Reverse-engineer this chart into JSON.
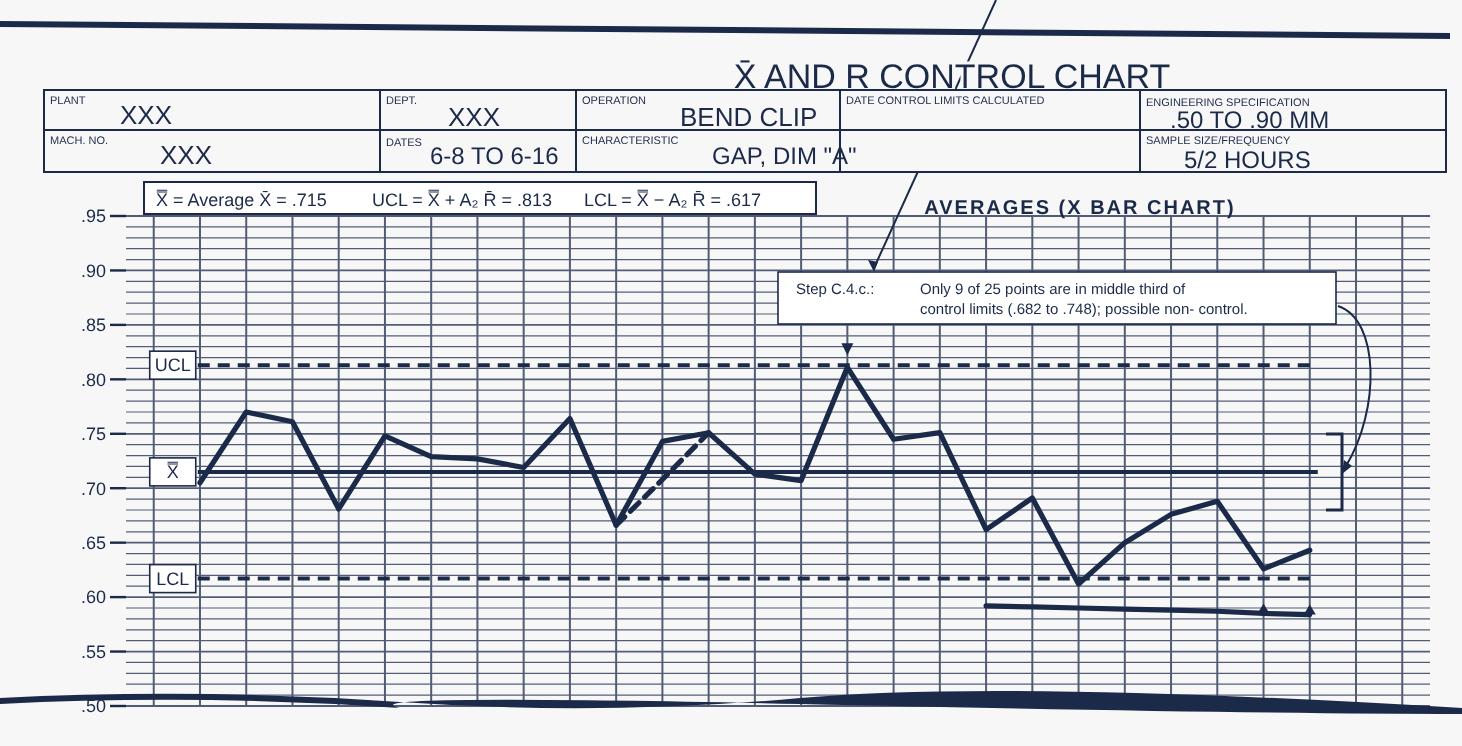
{
  "chart_data": {
    "type": "line",
    "title": "X̄ AND R CONTROL CHART",
    "subtitle": "AVERAGES (X BAR CHART)",
    "annotations": [
      "PLANT",
      "XXX",
      "DEPT.",
      "XXX",
      "OPERATION",
      "BEND CLIP",
      "DATE CONTROL LIMITS CALCULATED",
      "ENGINEERING SPECIFICATION",
      ".50 TO .90 MM",
      "MACH. NO.",
      "XXX",
      "DATES",
      "6-8 TO 6-16",
      "CHARACTERISTIC",
      "GAP, DIM \"A\"",
      "SAMPLE SIZE/FREQUENCY",
      "5/2 HOURS",
      "X̿ = Average X̄ = .715",
      "UCL = X̿ + A₂ R̄ = .813",
      "LCL = X̿ − A₂ R̄ = .617",
      "Step C.4.c.:",
      "Only 9 of 25 points are in middle third of",
      "control limits (.682 to .748); possible non- control."
    ],
    "categories": [
      null,
      null,
      null,
      null,
      null,
      null,
      null,
      null,
      null,
      null,
      null,
      null,
      null,
      null,
      null,
      null,
      null,
      null,
      null,
      null,
      null,
      null,
      null,
      null,
      null,
      null,
      null,
      null
    ],
    "series": [
      {
        "color": "#1c2a4a",
        "values": [
          null,
          0.705,
          0.77,
          0.761,
          0.681,
          0.748,
          0.729,
          0.727,
          0.719,
          0.764,
          0.666,
          0.743,
          0.751,
          0.713,
          0.707,
          0.811,
          0.745,
          0.751,
          0.662,
          0.691,
          0.612,
          0.65,
          0.676,
          0.688,
          0.626,
          0.643,
          null,
          null
        ]
      },
      {
        "color": "#1c2a4a",
        "values": [
          null,
          null,
          null,
          null,
          null,
          null,
          null,
          null,
          null,
          null,
          0.666,
          0.708,
          0.751,
          null,
          null,
          null,
          null,
          null,
          null,
          null,
          null,
          null,
          null,
          null,
          null,
          null,
          null,
          null
        ],
        "line_style": "dashed"
      },
      {
        "color": "#1c2a4a",
        "values": [
          null,
          null,
          null,
          null,
          null,
          null,
          null,
          null,
          null,
          null,
          null,
          null,
          null,
          null,
          null,
          null,
          null,
          null,
          0.592,
          0.591,
          0.59,
          0.589,
          0.588,
          0.587,
          0.585,
          0.584,
          null,
          null
        ]
      }
    ],
    "ref_lines": [
      {
        "axis": "y",
        "value": 0.813,
        "label": "UCL",
        "line_style": "dashed"
      },
      {
        "axis": "y",
        "value": 0.715,
        "label": "X̿",
        "line_style": "solid"
      },
      {
        "axis": "y",
        "value": 0.617,
        "label": "LCL",
        "line_style": "dashed"
      }
    ],
    "ylim": [
      0.5,
      0.95
    ],
    "yticks": [
      {
        "value": 0.5,
        "label": ".50"
      },
      {
        "value": 0.55,
        "label": ".55"
      },
      {
        "value": 0.6,
        "label": ".60"
      },
      {
        "value": 0.65,
        "label": ".65"
      },
      {
        "value": 0.7,
        "label": ".70"
      },
      {
        "value": 0.75,
        "label": ".75"
      },
      {
        "value": 0.8,
        "label": ".80"
      },
      {
        "value": 0.85,
        "label": ".85"
      },
      {
        "value": 0.9,
        "label": ".90"
      },
      {
        "value": 0.95,
        "label": ".95"
      },
      {
        "value": 0.51,
        "label": null
      },
      {
        "value": 0.52,
        "label": null
      },
      {
        "value": 0.53,
        "label": null
      },
      {
        "value": 0.54,
        "label": null
      },
      {
        "value": 0.56,
        "label": null
      },
      {
        "value": 0.57,
        "label": null
      },
      {
        "value": 0.58,
        "label": null
      },
      {
        "value": 0.59,
        "label": null
      },
      {
        "value": 0.61,
        "label": null
      },
      {
        "value": 0.62,
        "label": null
      },
      {
        "value": 0.63,
        "label": null
      },
      {
        "value": 0.64,
        "label": null
      },
      {
        "value": 0.66,
        "label": null
      },
      {
        "value": 0.67,
        "label": null
      },
      {
        "value": 0.68,
        "label": null
      },
      {
        "value": 0.69,
        "label": null
      },
      {
        "value": 0.71,
        "label": null
      },
      {
        "value": 0.72,
        "label": null
      },
      {
        "value": 0.73,
        "label": null
      },
      {
        "value": 0.74,
        "label": null
      },
      {
        "value": 0.76,
        "label": null
      },
      {
        "value": 0.77,
        "label": null
      },
      {
        "value": 0.78,
        "label": null
      },
      {
        "value": 0.79,
        "label": null
      },
      {
        "value": 0.81,
        "label": null
      },
      {
        "value": 0.82,
        "label": null
      },
      {
        "value": 0.83,
        "label": null
      },
      {
        "value": 0.84,
        "label": null
      },
      {
        "value": 0.86,
        "label": null
      },
      {
        "value": 0.87,
        "label": null
      },
      {
        "value": 0.88,
        "label": null
      },
      {
        "value": 0.89,
        "label": null
      },
      {
        "value": 0.91,
        "label": null
      },
      {
        "value": 0.92,
        "label": null
      },
      {
        "value": 0.93,
        "label": null
      },
      {
        "value": 0.94,
        "label": null
      }
    ],
    "tick_labels": "y",
    "grid": true,
    "marker": "none",
    "line_style": "solid"
  }
}
